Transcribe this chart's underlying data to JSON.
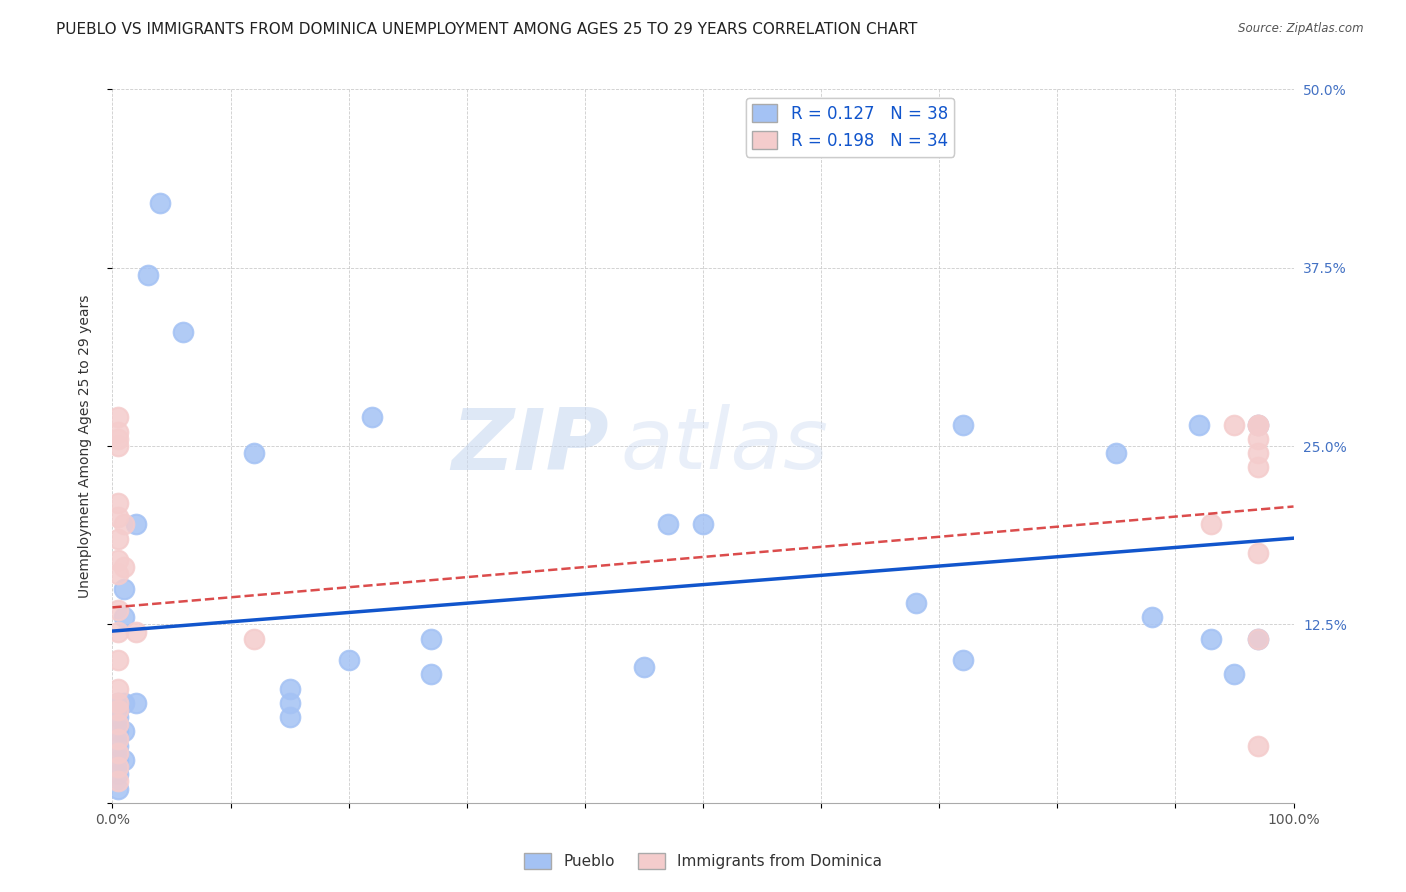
{
  "title": "PUEBLO VS IMMIGRANTS FROM DOMINICA UNEMPLOYMENT AMONG AGES 25 TO 29 YEARS CORRELATION CHART",
  "source": "Source: ZipAtlas.com",
  "ylabel": "Unemployment Among Ages 25 to 29 years",
  "xlim": [
    0,
    1.0
  ],
  "ylim": [
    0,
    0.5
  ],
  "xticks": [
    0.0,
    0.1,
    0.2,
    0.3,
    0.4,
    0.5,
    0.6,
    0.7,
    0.8,
    0.9,
    1.0
  ],
  "xticklabels": [
    "0.0%",
    "",
    "",
    "",
    "",
    "",
    "",
    "",
    "",
    "",
    "100.0%"
  ],
  "yticks": [
    0.0,
    0.125,
    0.25,
    0.375,
    0.5
  ],
  "yticklabels_right": [
    "",
    "12.5%",
    "25.0%",
    "37.5%",
    "50.0%"
  ],
  "pueblo_color": "#a4c2f4",
  "dominica_color": "#f4cccc",
  "pueblo_line_color": "#1155cc",
  "dominica_line_color": "#cc0000",
  "legend_label1": "Pueblo",
  "legend_label2": "Immigrants from Dominica",
  "pueblo_x": [
    0.005,
    0.005,
    0.005,
    0.005,
    0.005,
    0.005,
    0.005,
    0.01,
    0.01,
    0.01,
    0.01,
    0.01,
    0.02,
    0.02,
    0.03,
    0.04,
    0.06,
    0.12,
    0.15,
    0.15,
    0.15,
    0.2,
    0.22,
    0.27,
    0.27,
    0.45,
    0.47,
    0.5,
    0.68,
    0.72,
    0.72,
    0.85,
    0.88,
    0.92,
    0.93,
    0.95,
    0.97,
    0.97
  ],
  "pueblo_y": [
    0.07,
    0.06,
    0.05,
    0.04,
    0.03,
    0.02,
    0.01,
    0.15,
    0.13,
    0.07,
    0.05,
    0.03,
    0.195,
    0.07,
    0.37,
    0.42,
    0.33,
    0.245,
    0.08,
    0.07,
    0.06,
    0.1,
    0.27,
    0.115,
    0.09,
    0.095,
    0.195,
    0.195,
    0.14,
    0.265,
    0.1,
    0.245,
    0.13,
    0.265,
    0.115,
    0.09,
    0.265,
    0.115
  ],
  "dominica_x": [
    0.005,
    0.005,
    0.005,
    0.005,
    0.005,
    0.005,
    0.005,
    0.005,
    0.005,
    0.005,
    0.005,
    0.005,
    0.005,
    0.005,
    0.005,
    0.005,
    0.005,
    0.005,
    0.005,
    0.005,
    0.01,
    0.01,
    0.02,
    0.12,
    0.93,
    0.95,
    0.97,
    0.97,
    0.97,
    0.97,
    0.97,
    0.97,
    0.97,
    0.97
  ],
  "dominica_y": [
    0.27,
    0.26,
    0.255,
    0.25,
    0.21,
    0.2,
    0.185,
    0.17,
    0.16,
    0.135,
    0.12,
    0.1,
    0.08,
    0.07,
    0.065,
    0.055,
    0.045,
    0.035,
    0.025,
    0.015,
    0.195,
    0.165,
    0.12,
    0.115,
    0.195,
    0.265,
    0.265,
    0.265,
    0.255,
    0.245,
    0.235,
    0.175,
    0.115,
    0.04
  ],
  "watermark_zip": "ZIP",
  "watermark_atlas": "atlas",
  "background_color": "#ffffff",
  "grid_color": "#cccccc",
  "title_fontsize": 11,
  "axis_fontsize": 10,
  "tick_fontsize": 10,
  "legend_fontsize": 12
}
